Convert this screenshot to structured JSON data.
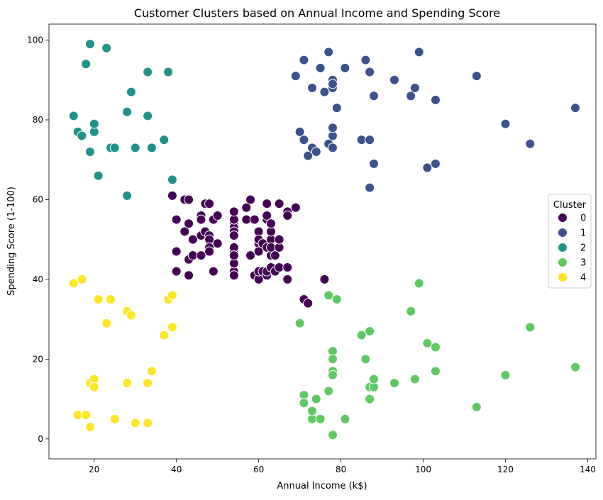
{
  "chart_data": {
    "type": "scatter",
    "title": "Customer Clusters based on Annual Income and Spending Score",
    "xlabel": "Annual Income (k$)",
    "ylabel": "Spending Score (1-100)",
    "xlim": [
      9,
      142
    ],
    "ylim": [
      -5,
      104
    ],
    "xticks": [
      20,
      40,
      60,
      80,
      100,
      120,
      140
    ],
    "yticks": [
      0,
      20,
      40,
      60,
      80,
      100
    ],
    "grid": false,
    "legend": {
      "title": "Cluster",
      "placement": "center-right"
    },
    "series": [
      {
        "name": "0",
        "color": "#440154",
        "points": [
          [
            39,
            61
          ],
          [
            40,
            55
          ],
          [
            40,
            47
          ],
          [
            40,
            42
          ],
          [
            42,
            52
          ],
          [
            42,
            60
          ],
          [
            43,
            54
          ],
          [
            43,
            60
          ],
          [
            43,
            45
          ],
          [
            43,
            41
          ],
          [
            44,
            50
          ],
          [
            44,
            46
          ],
          [
            46,
            51
          ],
          [
            46,
            46
          ],
          [
            46,
            56
          ],
          [
            46,
            55
          ],
          [
            47,
            52
          ],
          [
            47,
            59
          ],
          [
            48,
            51
          ],
          [
            48,
            59
          ],
          [
            48,
            50
          ],
          [
            48,
            48
          ],
          [
            48,
            47
          ],
          [
            49,
            55
          ],
          [
            49,
            42
          ],
          [
            50,
            49
          ],
          [
            50,
            56
          ],
          [
            54,
            47
          ],
          [
            54,
            54
          ],
          [
            54,
            53
          ],
          [
            54,
            48
          ],
          [
            54,
            52
          ],
          [
            54,
            42
          ],
          [
            54,
            51
          ],
          [
            54,
            55
          ],
          [
            54,
            41
          ],
          [
            54,
            44
          ],
          [
            54,
            57
          ],
          [
            54,
            46
          ],
          [
            57,
            58
          ],
          [
            57,
            55
          ],
          [
            58,
            60
          ],
          [
            58,
            46
          ],
          [
            59,
            55
          ],
          [
            59,
            41
          ],
          [
            60,
            49
          ],
          [
            60,
            40
          ],
          [
            60,
            42
          ],
          [
            60,
            52
          ],
          [
            60,
            47
          ],
          [
            60,
            50
          ],
          [
            61,
            42
          ],
          [
            61,
            49
          ],
          [
            62,
            41
          ],
          [
            62,
            48
          ],
          [
            62,
            59
          ],
          [
            62,
            55
          ],
          [
            62,
            56
          ],
          [
            62,
            42
          ],
          [
            63,
            50
          ],
          [
            63,
            46
          ],
          [
            63,
            43
          ],
          [
            63,
            48
          ],
          [
            63,
            52
          ],
          [
            63,
            54
          ],
          [
            64,
            42
          ],
          [
            64,
            46
          ],
          [
            65,
            48
          ],
          [
            65,
            50
          ],
          [
            65,
            43
          ],
          [
            65,
            59
          ],
          [
            67,
            43
          ],
          [
            67,
            57
          ],
          [
            67,
            56
          ],
          [
            67,
            40
          ],
          [
            69,
            58
          ],
          [
            71,
            35
          ],
          [
            72,
            34
          ],
          [
            76,
            40
          ]
        ]
      },
      {
        "name": "1",
        "color": "#3b528b",
        "points": [
          [
            69,
            91
          ],
          [
            70,
            77
          ],
          [
            71,
            95
          ],
          [
            71,
            75
          ],
          [
            72,
            71
          ],
          [
            73,
            88
          ],
          [
            73,
            73
          ],
          [
            74,
            72
          ],
          [
            75,
            93
          ],
          [
            76,
            87
          ],
          [
            77,
            97
          ],
          [
            77,
            74
          ],
          [
            78,
            90
          ],
          [
            78,
            88
          ],
          [
            78,
            76
          ],
          [
            78,
            89
          ],
          [
            78,
            78
          ],
          [
            78,
            73
          ],
          [
            79,
            83
          ],
          [
            81,
            93
          ],
          [
            85,
            75
          ],
          [
            86,
            95
          ],
          [
            87,
            63
          ],
          [
            87,
            75
          ],
          [
            87,
            92
          ],
          [
            88,
            86
          ],
          [
            88,
            69
          ],
          [
            93,
            90
          ],
          [
            97,
            86
          ],
          [
            98,
            88
          ],
          [
            99,
            97
          ],
          [
            101,
            68
          ],
          [
            103,
            85
          ],
          [
            103,
            69
          ],
          [
            113,
            91
          ],
          [
            120,
            79
          ],
          [
            126,
            74
          ],
          [
            137,
            83
          ]
        ]
      },
      {
        "name": "2",
        "color": "#21918c",
        "points": [
          [
            15,
            81
          ],
          [
            16,
            77
          ],
          [
            17,
            76
          ],
          [
            18,
            94
          ],
          [
            19,
            72
          ],
          [
            19,
            99
          ],
          [
            20,
            77
          ],
          [
            20,
            79
          ],
          [
            21,
            66
          ],
          [
            23,
            98
          ],
          [
            24,
            73
          ],
          [
            25,
            73
          ],
          [
            28,
            82
          ],
          [
            28,
            61
          ],
          [
            29,
            87
          ],
          [
            30,
            73
          ],
          [
            33,
            92
          ],
          [
            33,
            81
          ],
          [
            34,
            73
          ],
          [
            37,
            75
          ],
          [
            38,
            92
          ],
          [
            39,
            65
          ]
        ]
      },
      {
        "name": "3",
        "color": "#5ec962",
        "points": [
          [
            70,
            29
          ],
          [
            71,
            11
          ],
          [
            71,
            9
          ],
          [
            73,
            5
          ],
          [
            73,
            7
          ],
          [
            74,
            10
          ],
          [
            75,
            5
          ],
          [
            77,
            12
          ],
          [
            77,
            36
          ],
          [
            78,
            22
          ],
          [
            78,
            17
          ],
          [
            78,
            20
          ],
          [
            78,
            16
          ],
          [
            78,
            1
          ],
          [
            79,
            35
          ],
          [
            81,
            5
          ],
          [
            85,
            26
          ],
          [
            86,
            20
          ],
          [
            87,
            27
          ],
          [
            87,
            13
          ],
          [
            87,
            10
          ],
          [
            88,
            13
          ],
          [
            88,
            15
          ],
          [
            93,
            14
          ],
          [
            97,
            32
          ],
          [
            98,
            15
          ],
          [
            99,
            39
          ],
          [
            101,
            24
          ],
          [
            103,
            17
          ],
          [
            103,
            23
          ],
          [
            113,
            8
          ],
          [
            120,
            16
          ],
          [
            126,
            28
          ],
          [
            137,
            18
          ]
        ]
      },
      {
        "name": "4",
        "color": "#fde725",
        "points": [
          [
            15,
            39
          ],
          [
            16,
            6
          ],
          [
            17,
            40
          ],
          [
            18,
            6
          ],
          [
            19,
            3
          ],
          [
            19,
            14
          ],
          [
            20,
            15
          ],
          [
            20,
            13
          ],
          [
            21,
            35
          ],
          [
            23,
            29
          ],
          [
            24,
            35
          ],
          [
            25,
            5
          ],
          [
            28,
            14
          ],
          [
            28,
            32
          ],
          [
            29,
            31
          ],
          [
            30,
            4
          ],
          [
            33,
            4
          ],
          [
            33,
            14
          ],
          [
            34,
            17
          ],
          [
            37,
            26
          ],
          [
            38,
            35
          ],
          [
            39,
            36
          ],
          [
            39,
            28
          ]
        ]
      }
    ]
  }
}
